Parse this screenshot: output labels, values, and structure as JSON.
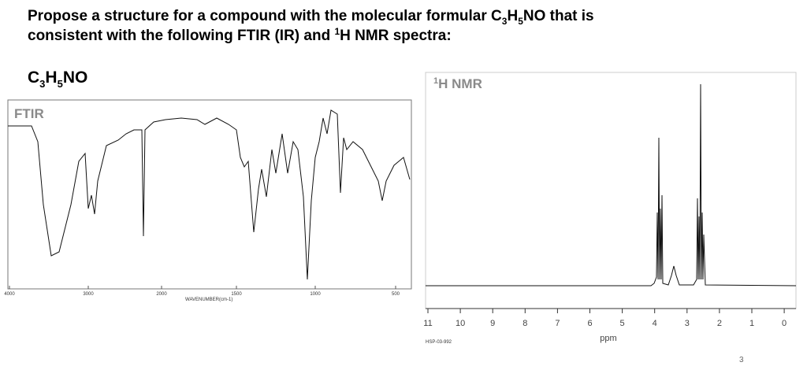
{
  "slide": {
    "title": {
      "line1": [
        "Propose a structure for a compound with the molecular formular C",
        "3",
        "H",
        "5",
        "NO that is"
      ],
      "line2": [
        "consistent with the following FTIR (IR) and ",
        "1",
        "H NMR spectra:"
      ]
    },
    "formula": [
      "C",
      "3",
      "H",
      "5",
      "NO"
    ],
    "ftir": {
      "label": "FTIR",
      "x_ticks": [
        "4000",
        "3000",
        "2000",
        "1500",
        "1000",
        "500"
      ],
      "x_axis_label": "WAVENUMBER(cm-1)"
    },
    "nmr": {
      "label": [
        "1",
        "H NMR"
      ],
      "x_ticks": [
        "11",
        "10",
        "9",
        "8",
        "7",
        "6",
        "5",
        "4",
        "3",
        "2",
        "1",
        "0"
      ],
      "x_axis_label": "ppm",
      "code": "HSP-03-992"
    },
    "page_number": "3"
  }
}
